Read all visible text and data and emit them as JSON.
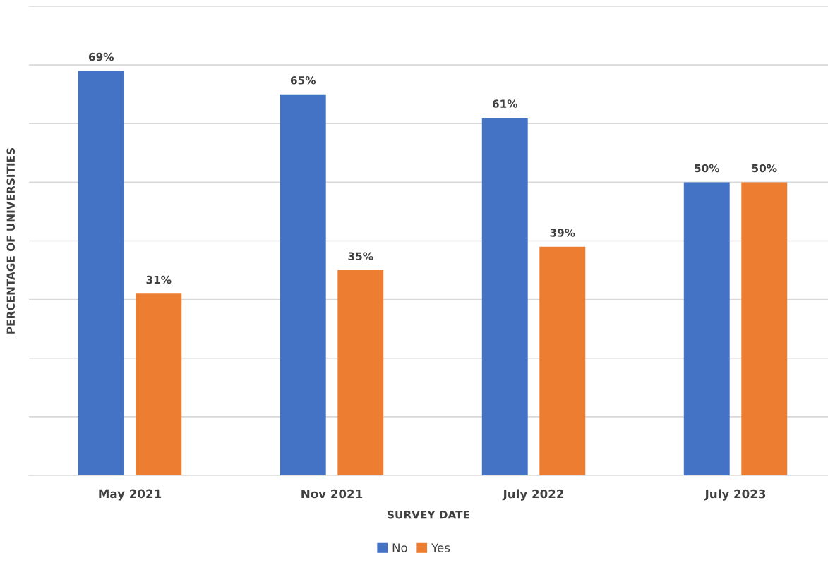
{
  "chart_data": {
    "type": "bar",
    "xlabel": "SURVEY DATE",
    "ylabel": "PERCENTAGE OF UNIVERSITIES",
    "categories": [
      "May 2021",
      "Nov 2021",
      "July 2022",
      "July 2023"
    ],
    "series": [
      {
        "name": "No",
        "color": "#4472c4",
        "values": [
          69,
          65,
          61,
          50
        ],
        "value_labels": [
          "69%",
          "65%",
          "61%",
          "50%"
        ]
      },
      {
        "name": "Yes",
        "color": "#ed7d31",
        "values": [
          31,
          35,
          39,
          50
        ],
        "value_labels": [
          "31%",
          "35%",
          "39%",
          "50%"
        ]
      }
    ],
    "ylim": [
      0,
      80
    ],
    "yticks": [
      {
        "value": 0,
        "label": null
      },
      {
        "value": 10,
        "label": null
      },
      {
        "value": 20,
        "label": null
      },
      {
        "value": 30,
        "label": null
      },
      {
        "value": 40,
        "label": null
      },
      {
        "value": 50,
        "label": null
      },
      {
        "value": 60,
        "label": null
      },
      {
        "value": 70,
        "label": null
      },
      {
        "value": 80,
        "label": null
      }
    ],
    "tick_labels": "x",
    "grid": "y",
    "legend": "bottom"
  }
}
